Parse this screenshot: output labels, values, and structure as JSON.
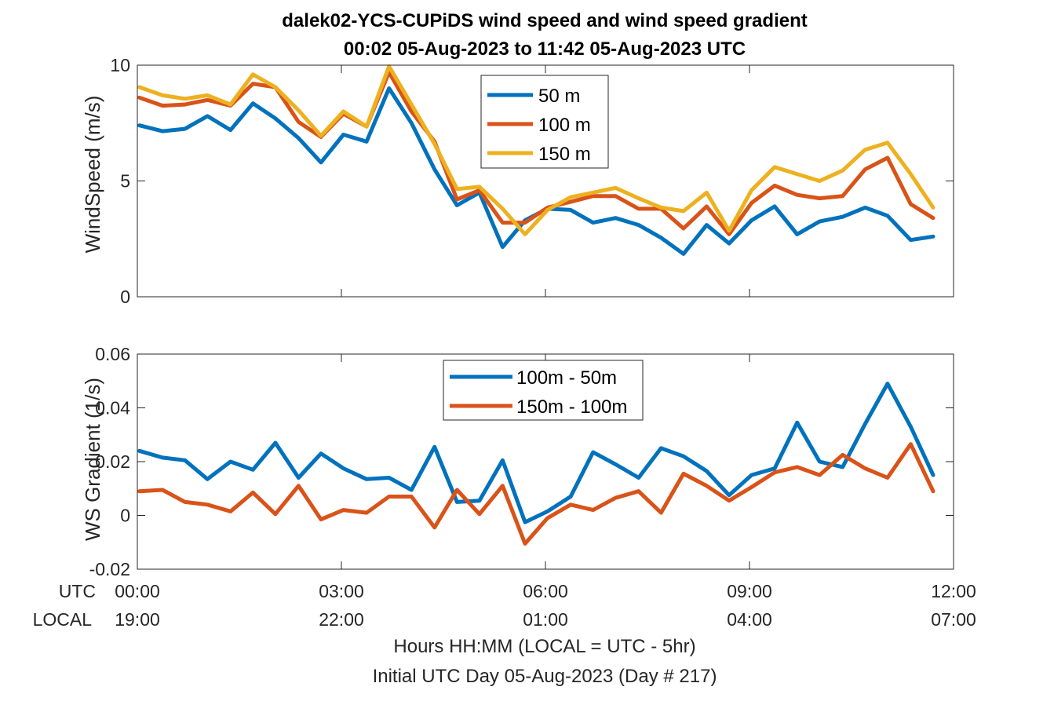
{
  "title_line1": "dalek02-YCS-CUPiDS  wind speed and wind speed gradient",
  "title_line2": "00:02 05-Aug-2023 to 11:42 05-Aug-2023  UTC",
  "utc_row_label": "UTC",
  "local_row_label": "LOCAL",
  "xlabel_line1": "Hours HH:MM  (LOCAL = UTC - 5hr)",
  "xlabel_line2": "Initial UTC Day 05-Aug-2023 (Day # 217)",
  "x_ticks_hours": [
    0,
    3,
    6,
    9,
    12
  ],
  "utc_tick_labels": [
    "00:00",
    "03:00",
    "06:00",
    "09:00",
    "12:00"
  ],
  "local_tick_labels": [
    "19:00",
    "22:00",
    "01:00",
    "04:00",
    "07:00"
  ],
  "colors": {
    "blue": "#0072BD",
    "orange": "#D95319",
    "yellow": "#EDB120"
  },
  "chart_data": [
    {
      "type": "line",
      "ylabel": "WindSpeed (m/s)",
      "xlim": [
        0,
        12
      ],
      "ylim": [
        0,
        10
      ],
      "yticks": [
        0,
        5,
        10
      ],
      "ytick_labels": [
        "0",
        "5",
        "10"
      ],
      "grid": false,
      "legend": "top-center",
      "x": [
        0.03,
        0.37,
        0.7,
        1.03,
        1.37,
        1.7,
        2.03,
        2.37,
        2.7,
        3.03,
        3.37,
        3.7,
        4.03,
        4.37,
        4.7,
        5.03,
        5.37,
        5.7,
        6.03,
        6.37,
        6.7,
        7.03,
        7.37,
        7.7,
        8.03,
        8.37,
        8.7,
        9.03,
        9.37,
        9.7,
        10.03,
        10.37,
        10.7,
        11.03,
        11.37,
        11.7
      ],
      "series": [
        {
          "name": "50 m",
          "color": "#0072BD",
          "values": [
            7.4,
            7.15,
            7.25,
            7.8,
            7.2,
            8.35,
            7.7,
            6.85,
            5.8,
            7.0,
            6.7,
            9.0,
            7.5,
            5.5,
            3.95,
            4.5,
            2.15,
            3.3,
            3.8,
            3.75,
            3.2,
            3.4,
            3.1,
            2.55,
            1.85,
            3.1,
            2.3,
            3.3,
            3.9,
            2.7,
            3.25,
            3.45,
            3.85,
            3.5,
            2.45,
            2.6
          ]
        },
        {
          "name": "100 m",
          "color": "#D95319",
          "values": [
            8.6,
            8.25,
            8.3,
            8.5,
            8.25,
            9.2,
            9.05,
            7.55,
            6.9,
            7.9,
            7.35,
            9.7,
            8.0,
            6.7,
            4.2,
            4.6,
            3.2,
            3.2,
            3.85,
            4.1,
            4.35,
            4.35,
            3.8,
            3.8,
            2.95,
            3.9,
            2.7,
            4.05,
            4.8,
            4.4,
            4.25,
            4.35,
            5.5,
            6.0,
            4.0,
            3.4
          ]
        },
        {
          "name": "150 m",
          "color": "#EDB120",
          "values": [
            9.05,
            8.7,
            8.55,
            8.7,
            8.3,
            9.6,
            9.05,
            8.05,
            6.95,
            8.0,
            7.35,
            9.95,
            8.3,
            6.6,
            4.65,
            4.75,
            3.8,
            2.7,
            3.75,
            4.3,
            4.5,
            4.7,
            4.25,
            3.85,
            3.7,
            4.5,
            2.85,
            4.6,
            5.6,
            5.3,
            5.0,
            5.45,
            6.35,
            6.65,
            5.3,
            3.85
          ]
        }
      ]
    },
    {
      "type": "line",
      "ylabel": "WS Gradient (1/s)",
      "xlim": [
        0,
        12
      ],
      "ylim": [
        -0.02,
        0.06
      ],
      "yticks": [
        -0.02,
        0,
        0.02,
        0.04,
        0.06
      ],
      "ytick_labels": [
        "-0.02",
        "0",
        "0.02",
        "0.04",
        "0.06"
      ],
      "grid": false,
      "legend": "top-center",
      "x": [
        0.03,
        0.37,
        0.7,
        1.03,
        1.37,
        1.7,
        2.03,
        2.37,
        2.7,
        3.03,
        3.37,
        3.7,
        4.03,
        4.37,
        4.7,
        5.03,
        5.37,
        5.7,
        6.03,
        6.37,
        6.7,
        7.03,
        7.37,
        7.7,
        8.03,
        8.37,
        8.7,
        9.03,
        9.37,
        9.7,
        10.03,
        10.37,
        10.7,
        11.03,
        11.37,
        11.7
      ],
      "series": [
        {
          "name": "100m - 50m",
          "color": "#0072BD",
          "values": [
            0.024,
            0.0215,
            0.0205,
            0.0135,
            0.02,
            0.017,
            0.027,
            0.014,
            0.023,
            0.0175,
            0.0135,
            0.014,
            0.0095,
            0.0255,
            0.005,
            0.0055,
            0.0205,
            -0.0025,
            0.0015,
            0.007,
            0.0235,
            0.019,
            0.014,
            0.025,
            0.022,
            0.0165,
            0.0075,
            0.015,
            0.0175,
            0.0345,
            0.02,
            0.018,
            0.034,
            0.049,
            0.033,
            0.015
          ]
        },
        {
          "name": "150m - 100m",
          "color": "#D95319",
          "values": [
            0.009,
            0.0095,
            0.005,
            0.004,
            0.0015,
            0.0085,
            0.0005,
            0.011,
            -0.0015,
            0.002,
            0.001,
            0.007,
            0.007,
            -0.0045,
            0.0095,
            0.0005,
            0.011,
            -0.0105,
            -0.001,
            0.004,
            0.002,
            0.0065,
            0.009,
            0.001,
            0.0155,
            0.011,
            0.0055,
            0.0105,
            0.016,
            0.018,
            0.015,
            0.0225,
            0.0175,
            0.014,
            0.0265,
            0.009
          ]
        }
      ]
    }
  ]
}
